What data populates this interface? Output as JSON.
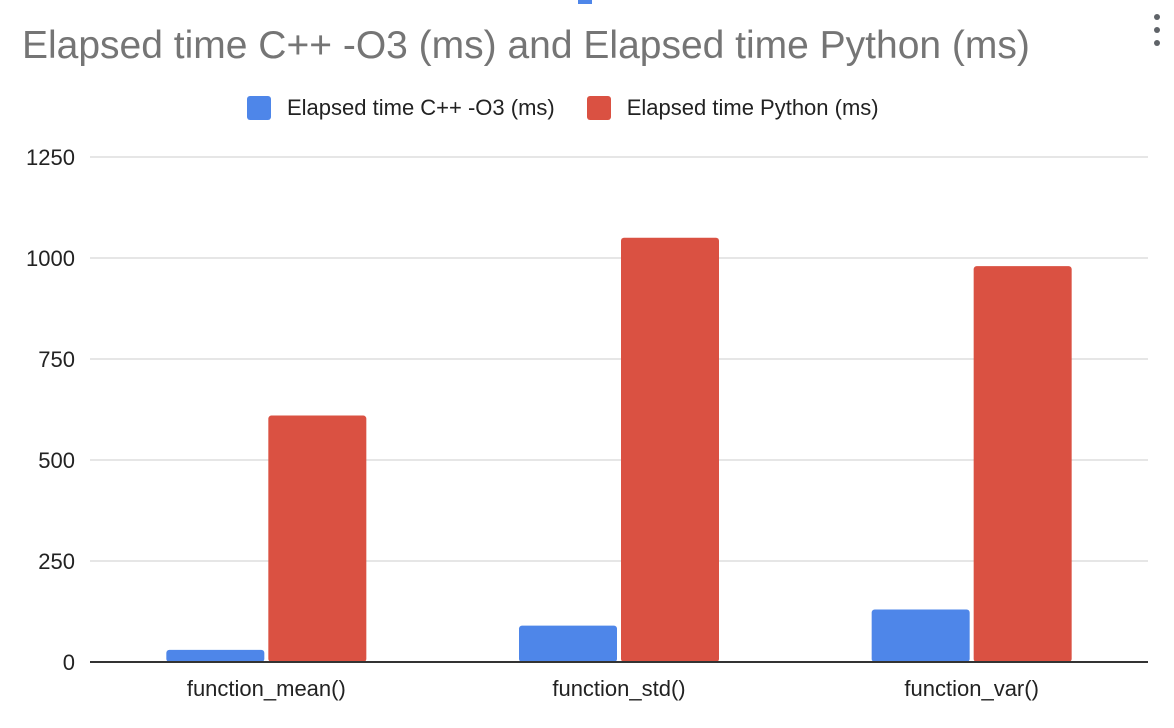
{
  "chart_data": {
    "type": "bar",
    "title": "Elapsed time C++ -O3 (ms) and Elapsed time Python (ms)",
    "categories": [
      "function_mean()",
      "function_std()",
      "function_var()"
    ],
    "series": [
      {
        "name": "Elapsed time C++ -O3 (ms)",
        "values": [
          30,
          90,
          130
        ],
        "color": "#4e86e9"
      },
      {
        "name": "Elapsed time Python (ms)",
        "values": [
          610,
          1050,
          980
        ],
        "color": "#da5142"
      }
    ],
    "y_ticks": [
      "0",
      "250",
      "500",
      "750",
      "1000",
      "1250"
    ],
    "ylim": [
      0,
      1250
    ],
    "grid": true,
    "legend_position": "top"
  },
  "icons": {
    "menu": "more-vert-icon"
  }
}
